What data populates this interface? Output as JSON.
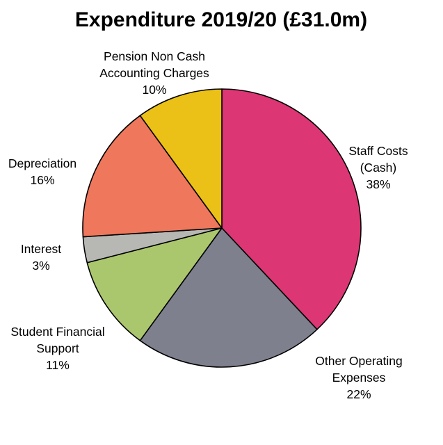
{
  "chart_data": {
    "type": "pie",
    "title": "Expenditure 2019/20 (£31.0m)",
    "slices": [
      {
        "label_lines": [
          "Staff Costs",
          "(Cash)"
        ],
        "percent_label": "38%",
        "value": 38,
        "color": "#DC3674"
      },
      {
        "label_lines": [
          "Other Operating",
          "Expenses"
        ],
        "percent_label": "22%",
        "value": 22,
        "color": "#7E808E"
      },
      {
        "label_lines": [
          "Student Financial",
          "Support"
        ],
        "percent_label": "11%",
        "value": 11,
        "color": "#ABC76E"
      },
      {
        "label_lines": [
          "Interest"
        ],
        "percent_label": "3%",
        "value": 3,
        "color": "#B7B8B3"
      },
      {
        "label_lines": [
          "Depreciation"
        ],
        "percent_label": "16%",
        "value": 16,
        "color": "#EE775C"
      },
      {
        "label_lines": [
          "Pension Non Cash",
          "Accounting Charges"
        ],
        "percent_label": "10%",
        "value": 10,
        "color": "#EBC017"
      }
    ],
    "legend": "none"
  }
}
